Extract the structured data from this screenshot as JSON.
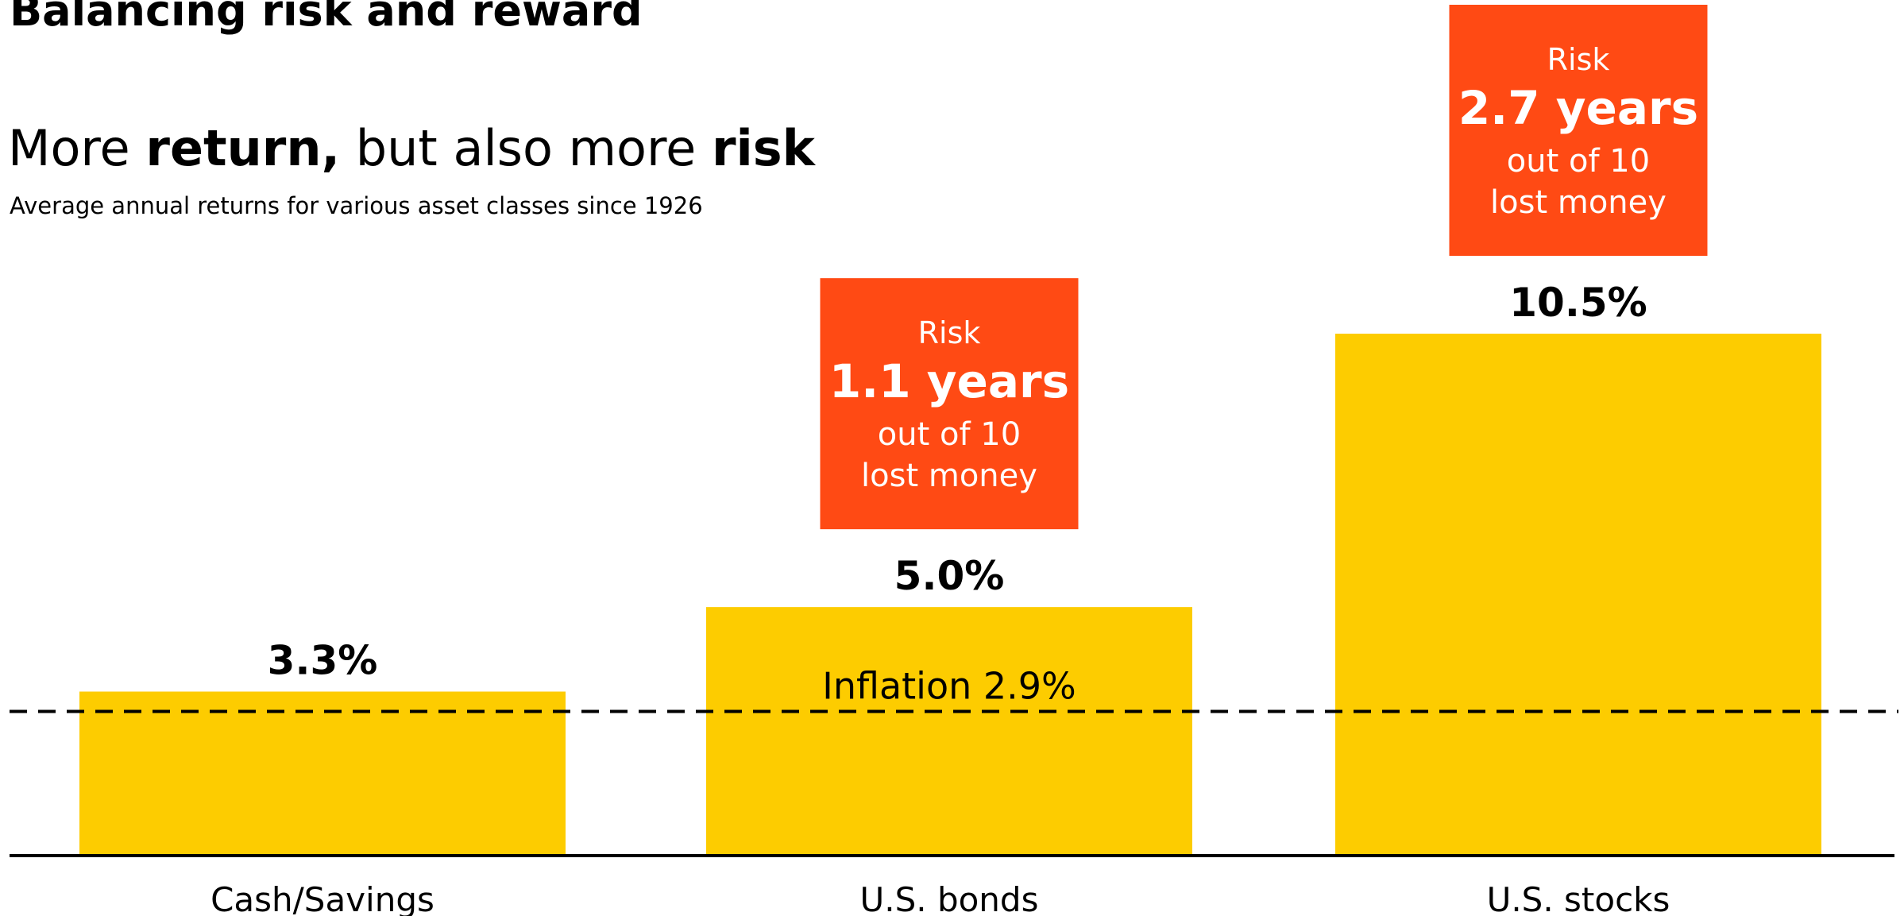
{
  "heading": "Balancing risk and reward",
  "headline": {
    "part1": "More ",
    "bold1": "return,",
    "part2": " but also more ",
    "bold2": "risk"
  },
  "subtitle": "Average annual returns for various asset classes since 1926",
  "colors": {
    "bar": "#FDCC00",
    "risk_box": "#FF4A14",
    "risk_text": "#FFFFFF",
    "text": "#000000"
  },
  "chart_data": {
    "type": "bar",
    "categories": [
      "Cash/Savings",
      "U.S. bonds",
      "U.S. stocks"
    ],
    "values": [
      3.3,
      5.0,
      10.5
    ],
    "value_labels": [
      "3.3%",
      "5.0%",
      "10.5%"
    ],
    "ylim": [
      0,
      10.5
    ],
    "grid": false,
    "reference_line": {
      "value": 2.9,
      "label": "Inflation 2.9%",
      "style": "dashed"
    },
    "risk_callouts": [
      null,
      {
        "title": "Risk",
        "value": "1.1 years",
        "line1": "out of 10",
        "line2": "lost money"
      },
      {
        "title": "Risk",
        "value": "2.7 years",
        "line1": "out of 10",
        "line2": "lost money"
      }
    ]
  }
}
